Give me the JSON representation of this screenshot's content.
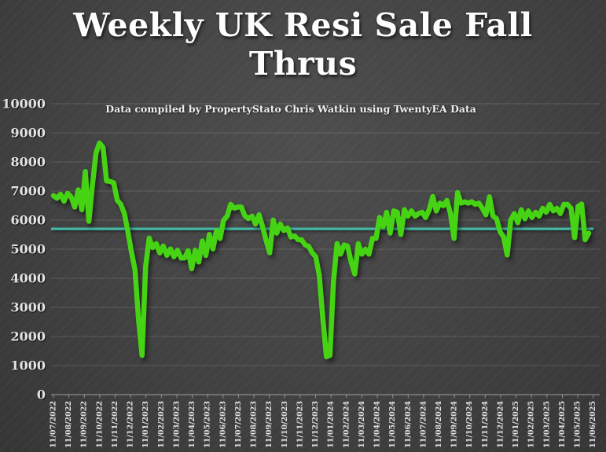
{
  "slide": {
    "title": "Weekly UK Resi Sale Fall Thrus",
    "title_lines": [
      "Weekly UK Resi Sale Fall",
      "Thrus"
    ],
    "subtitle": "Data compiled by PropertyStato Chris Watkin using TwentyEA Data"
  },
  "colors": {
    "line_green": "#46d313",
    "trend_teal": "#45b8a5",
    "slide_background": "#474747",
    "label_text": "#e3e3e3"
  },
  "chart_data": {
    "type": "line",
    "title": "Weekly UK Resi Sale Fall Thrus",
    "subtitle": "Data compiled by PropertyStato Chris Watkin using TwentyEA Data",
    "xlabel": "",
    "ylabel": "",
    "ylim": [
      0,
      10000
    ],
    "y_ticks": [
      0,
      1000,
      2000,
      3000,
      4000,
      5000,
      6000,
      7000,
      8000,
      9000,
      10000
    ],
    "grid": "horizontal",
    "legend": "none",
    "x_tick_labels": [
      "11/07/2022",
      "11/08/2022",
      "11/09/2022",
      "11/10/2022",
      "11/11/2022",
      "11/12/2022",
      "11/01/2023",
      "11/02/2023",
      "11/03/2023",
      "11/04/2023",
      "11/05/2023",
      "11/06/2023",
      "11/07/2023",
      "11/08/2023",
      "11/09/2023",
      "11/10/2023",
      "11/11/2023",
      "11/12/2023",
      "11/01/2024",
      "11/02/2024",
      "11/03/2024",
      "11/04/2024",
      "11/05/2024",
      "11/06/2024",
      "11/07/2024",
      "11/08/2024",
      "11/09/2024",
      "11/10/2024",
      "11/11/2024",
      "11/12/2024",
      "11/01/2025",
      "11/02/2025",
      "11/03/2025",
      "11/04/2025",
      "11/05/2025",
      "11/06/2025"
    ],
    "series": [
      {
        "name": "Weekly UK residential sale fall throughs",
        "color": "#46d313",
        "frequency": "weekly",
        "start_label": "11/07/2022",
        "values": [
          6840,
          6750,
          6890,
          6650,
          6920,
          6800,
          6450,
          7040,
          6360,
          7670,
          5960,
          7200,
          8300,
          8650,
          8500,
          7350,
          7330,
          7280,
          6680,
          6540,
          6230,
          5600,
          4900,
          4300,
          2600,
          1350,
          4400,
          5380,
          5055,
          5190,
          4870,
          5110,
          4790,
          5010,
          4740,
          4965,
          4695,
          4700,
          4950,
          4330,
          4965,
          4560,
          5280,
          4785,
          5505,
          5010,
          5640,
          5370,
          6000,
          6135,
          6540,
          6410,
          6450,
          6450,
          6150,
          6050,
          6135,
          5865,
          6180,
          5775,
          5300,
          4875,
          6000,
          5550,
          5865,
          5640,
          5730,
          5415,
          5460,
          5325,
          5325,
          5145,
          5100,
          4875,
          4740,
          4100,
          2600,
          1300,
          1350,
          3900,
          5190,
          4830,
          5145,
          5100,
          4560,
          4150,
          5190,
          4830,
          5000,
          4830,
          5370,
          5370,
          6090,
          5775,
          6270,
          5550,
          6315,
          6270,
          5505,
          6360,
          6135,
          6315,
          6135,
          6225,
          6270,
          6090,
          6360,
          6810,
          6315,
          6585,
          6495,
          6675,
          6225,
          5370,
          6950,
          6585,
          6630,
          6585,
          6630,
          6540,
          6585,
          6405,
          6180,
          6800,
          6135,
          6045,
          5595,
          5415,
          4800,
          6000,
          6225,
          5910,
          6360,
          6045,
          6315,
          6090,
          6270,
          6135,
          6405,
          6270,
          6540,
          6315,
          6405,
          6225,
          6540,
          6540,
          6405,
          5400,
          6470,
          6550,
          5325,
          5550
        ]
      },
      {
        "name": "trend-line",
        "type": "constant",
        "color": "#45b8a5",
        "value": 5700
      }
    ]
  }
}
